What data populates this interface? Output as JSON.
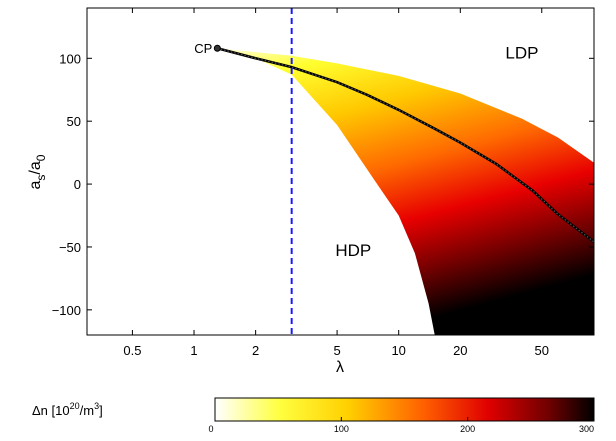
{
  "chart_data": {
    "type": "area",
    "x_scale": "log",
    "xlabel": "λ",
    "ylabel": {
      "main": "a",
      "sub1": "s",
      "mid": "/a",
      "sub2": "0"
    },
    "xlim": [
      0.3,
      90
    ],
    "ylim": [
      -120,
      140
    ],
    "x_ticks": [
      0.5,
      1,
      2,
      5,
      10,
      20,
      50
    ],
    "x_tick_labels": [
      "0.5",
      "1",
      "2",
      "5",
      "10",
      "20",
      "50"
    ],
    "y_ticks": [
      -100,
      -50,
      0,
      50,
      100
    ],
    "y_tick_labels": [
      "−100",
      "−50",
      "0",
      "50",
      "100"
    ],
    "critical_point": {
      "label": "CP",
      "x": 1.3,
      "y": 108
    },
    "dashed_line_x": 3.0,
    "dashed_line_color": "#1a1aff",
    "region_labels": [
      {
        "text": "LDP",
        "x": 40,
        "y": 100
      },
      {
        "text": "HDP",
        "x": 6,
        "y": -57
      }
    ],
    "coexistence_curve": [
      [
        1.3,
        108
      ],
      [
        2,
        100
      ],
      [
        3,
        93
      ],
      [
        5,
        81
      ],
      [
        7,
        71
      ],
      [
        10,
        59
      ],
      [
        15,
        44
      ],
      [
        20,
        33
      ],
      [
        30,
        16
      ],
      [
        45,
        -5
      ],
      [
        60,
        -24
      ],
      [
        90,
        -46
      ]
    ],
    "upper_boundary": [
      [
        1.3,
        108
      ],
      [
        3,
        102
      ],
      [
        5,
        96
      ],
      [
        10,
        86
      ],
      [
        20,
        72
      ],
      [
        40,
        52
      ],
      [
        60,
        37
      ],
      [
        90,
        17
      ]
    ],
    "lower_boundary": [
      [
        1.3,
        108
      ],
      [
        2,
        100
      ],
      [
        3,
        87
      ],
      [
        5,
        47
      ],
      [
        8,
        -2
      ],
      [
        10,
        -25
      ],
      [
        12,
        -55
      ],
      [
        14,
        -95
      ],
      [
        15,
        -120
      ]
    ],
    "colorbar": {
      "label": "Δn [10",
      "label_sup": "20",
      "label_mid": "/m",
      "label_sup2": "3",
      "label_end": "]",
      "range": [
        0,
        300
      ],
      "ticks": [
        0,
        100,
        200,
        300
      ],
      "tick_labels": [
        "0",
        "100",
        "200",
        "300"
      ],
      "colors": [
        "#ffffff",
        "#ffff00",
        "#ff8000",
        "#ff0000",
        "#c00000",
        "#000000"
      ]
    }
  }
}
